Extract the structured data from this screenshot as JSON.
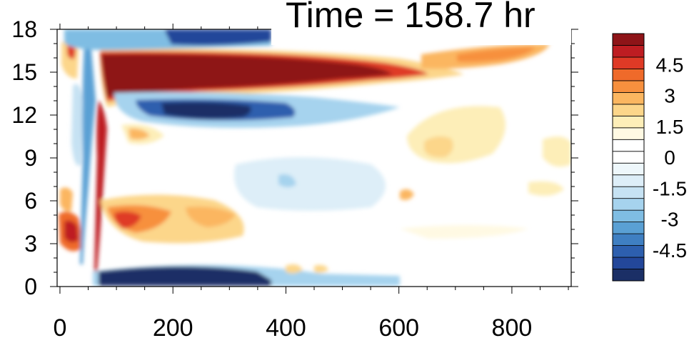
{
  "chart_data": {
    "type": "heatmap",
    "title": "Time = 158.7 hr",
    "xlabel": "",
    "ylabel": "",
    "xlim": [
      -5,
      905
    ],
    "ylim": [
      0,
      18
    ],
    "x_ticks": [
      0,
      200,
      400,
      600,
      800
    ],
    "y_ticks": [
      0,
      3,
      6,
      9,
      12,
      15,
      18
    ],
    "x_tick_labels": [
      "0",
      "200",
      "400",
      "600",
      "800"
    ],
    "y_tick_labels": [
      "0",
      "3",
      "6",
      "9",
      "12",
      "15",
      "18"
    ],
    "grid": false,
    "colorbar": {
      "position": "right",
      "levels": [
        -6,
        -5.25,
        -4.5,
        -3.75,
        -3,
        -2.25,
        -1.5,
        -1.125,
        -0.75,
        -0.375,
        0,
        0.375,
        0.75,
        1.125,
        1.5,
        2.25,
        3,
        3.75,
        4.5,
        5.25,
        6
      ],
      "colors": [
        "#1b2f66",
        "#23479a",
        "#2d5fae",
        "#3f7fc2",
        "#5aa0d4",
        "#7fbde3",
        "#a6d3ee",
        "#c6e2f3",
        "#ddeef8",
        "#eef7fb",
        "#ffffff",
        "#ffffff",
        "#fff9e3",
        "#fdeeb8",
        "#fcd68a",
        "#fbb660",
        "#f7903e",
        "#ef6a2a",
        "#df3a26",
        "#be1d22",
        "#8e1418"
      ],
      "tick_values": [
        4.5,
        3,
        1.5,
        0,
        -1.5,
        -3,
        -4.5
      ],
      "tick_labels": [
        "4.5",
        "3",
        "1.5",
        "0",
        "-1.5",
        "-3",
        "-4.5"
      ]
    },
    "field_features": [
      {
        "kind": "warm",
        "x": [
          75,
          640
        ],
        "y": [
          13.4,
          16.6
        ],
        "peak": 6.0
      },
      {
        "kind": "cold",
        "x": [
          80,
          560
        ],
        "y": [
          11.3,
          13.2
        ],
        "peak": -5.0
      },
      {
        "kind": "cold",
        "x": [
          90,
          380
        ],
        "y": [
          16.5,
          18
        ],
        "peak": -4.2
      },
      {
        "kind": "warm",
        "x": [
          600,
          860
        ],
        "y": [
          16.0,
          17.0
        ],
        "peak": 3.5
      },
      {
        "kind": "cold",
        "x": [
          70,
          560
        ],
        "y": [
          0,
          1.2
        ],
        "peak": -6.0
      },
      {
        "kind": "warm",
        "x": [
          0,
          120
        ],
        "y": [
          2.5,
          6.0
        ],
        "peak": 4.2
      },
      {
        "kind": "warm",
        "x": [
          120,
          340
        ],
        "y": [
          2.3,
          5.5
        ],
        "peak": 3.0
      },
      {
        "kind": "warm",
        "x": [
          570,
          900
        ],
        "y": [
          8.5,
          13.0
        ],
        "peak": 1.8
      },
      {
        "kind": "cold",
        "x": [
          320,
          620
        ],
        "y": [
          5.0,
          9.0
        ],
        "peak": -1.2
      }
    ]
  }
}
